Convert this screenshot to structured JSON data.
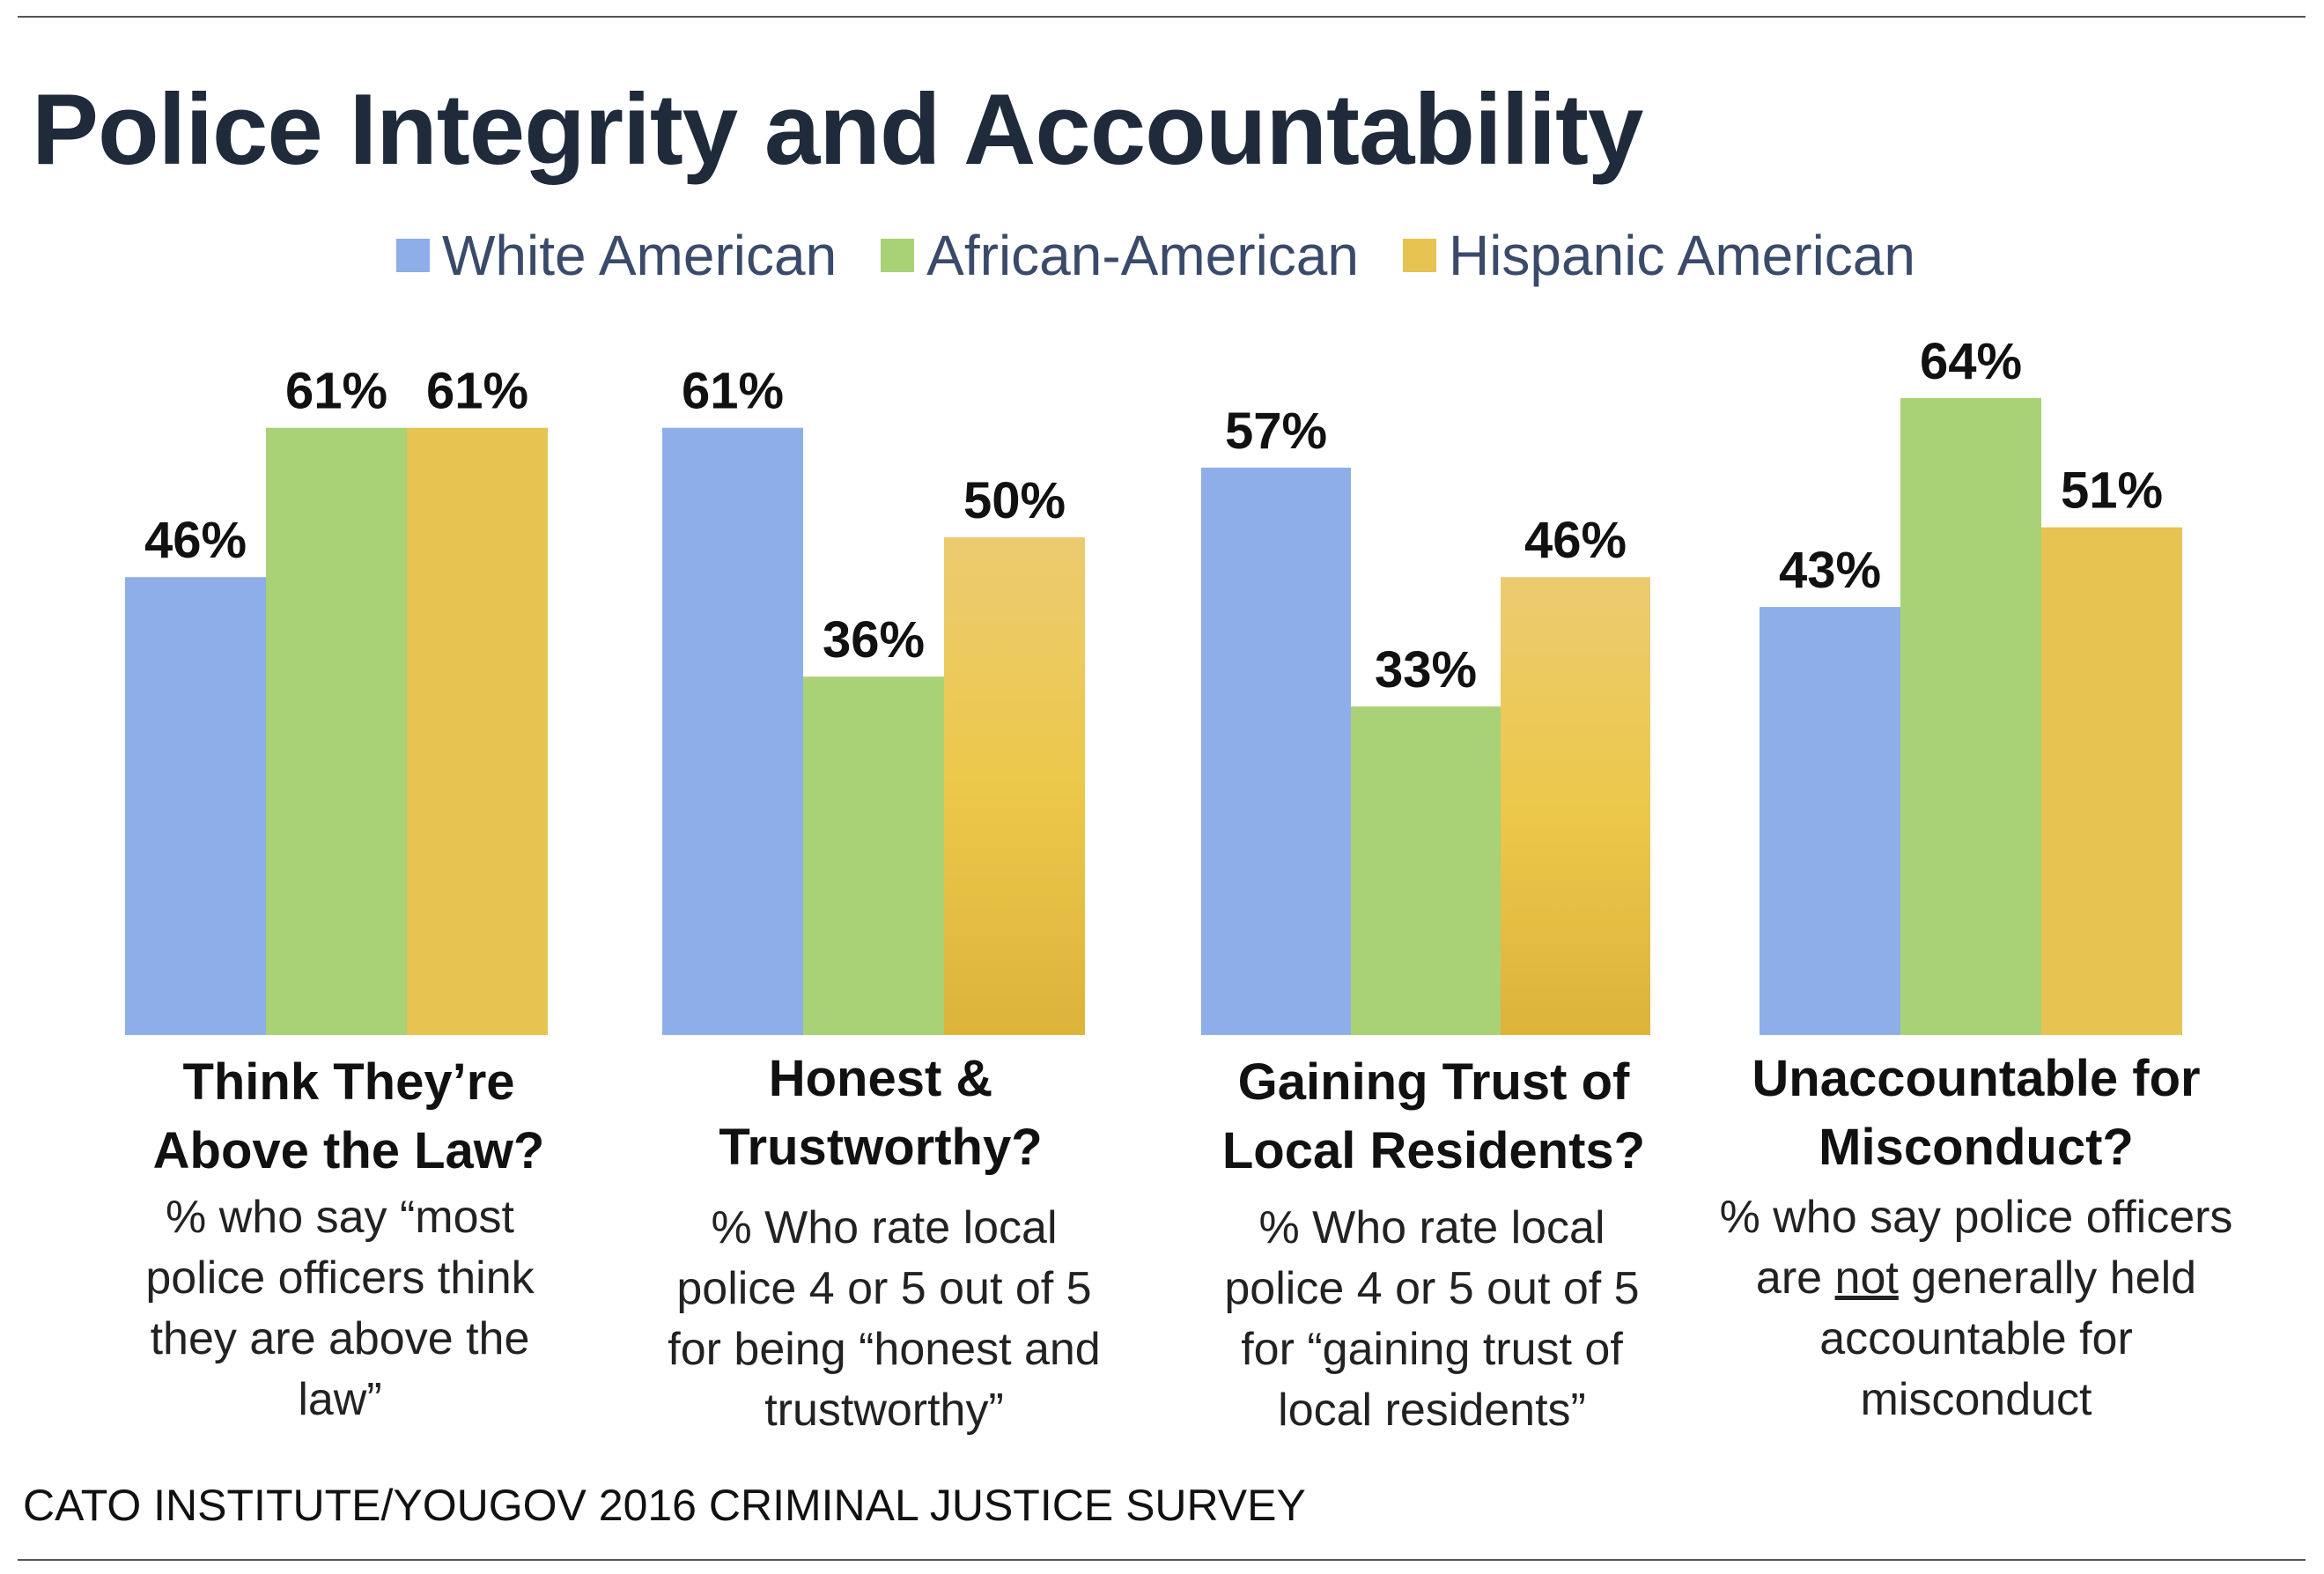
{
  "title": "Police Integrity and Accountability",
  "legend": [
    {
      "label": "White American",
      "color": "#8eaee9"
    },
    {
      "label": "African-American",
      "color": "#a9d175"
    },
    {
      "label": "Hispanic American",
      "color": "#e7c352"
    }
  ],
  "chart_data": {
    "type": "bar",
    "title": "Police Integrity and Accountability",
    "categories": [
      "Think They’re Above the Law?",
      "Honest & Trustworthy?",
      "Gaining Trust of Local Residents?",
      "Unaccountable for Misconduct?"
    ],
    "series": [
      {
        "name": "White American",
        "values": [
          46,
          61,
          57,
          43
        ],
        "color": "#8eaee9"
      },
      {
        "name": "African-American",
        "values": [
          61,
          36,
          33,
          64
        ],
        "color": "#a9d175"
      },
      {
        "name": "Hispanic American",
        "values": [
          61,
          50,
          46,
          51
        ],
        "color": "#e7c352"
      }
    ],
    "data_labels": [
      [
        "46%",
        "61%",
        "57%",
        "43%"
      ],
      [
        "61%",
        "36%",
        "33%",
        "64%"
      ],
      [
        "61%",
        "50%",
        "46%",
        "51%"
      ]
    ],
    "ylim": [
      0,
      100
    ],
    "grid": false,
    "legend_position": "top"
  },
  "groups": [
    {
      "heading": [
        "Think They’re",
        "Above the Law?"
      ],
      "note": [
        "% who say “most",
        "police officers think",
        "they are above the",
        "law”"
      ]
    },
    {
      "heading": [
        "Honest &",
        "Trustworthy?"
      ],
      "note": [
        "% Who rate local",
        "police 4 or 5 out of 5",
        "for being “honest and",
        "trustworthy”"
      ]
    },
    {
      "heading": [
        "Gaining Trust of",
        "Local Residents?"
      ],
      "note": [
        "% Who rate local",
        "police 4 or 5 out of 5",
        "for “gaining trust of",
        "local residents”"
      ]
    },
    {
      "heading": [
        "Unaccountable for",
        "Misconduct?"
      ],
      "note_line1": "% who say police officers",
      "note_line2_pre": "are ",
      "note_line2_emph": "not",
      "note_line2_post": " generally held",
      "note_line3": "accountable for",
      "note_line4": "misconduct"
    }
  ],
  "source": "CATO INSTITUTE/YOUGOV 2016 CRIMINAL JUSTICE SURVEY"
}
